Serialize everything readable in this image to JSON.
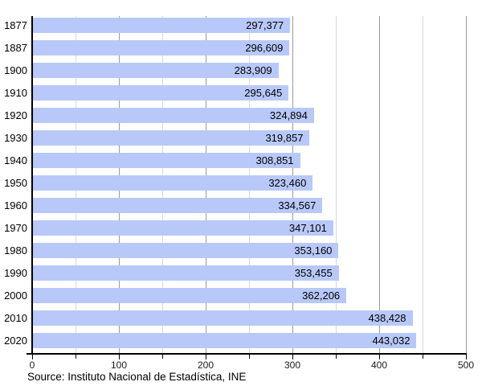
{
  "chart_data": {
    "type": "bar",
    "orientation": "horizontal",
    "title": "",
    "xlabel": "",
    "ylabel": "",
    "categories": [
      "1877",
      "1887",
      "1900",
      "1910",
      "1920",
      "1930",
      "1940",
      "1950",
      "1960",
      "1970",
      "1980",
      "1990",
      "2000",
      "2010",
      "2020"
    ],
    "values": [
      297377,
      296609,
      283909,
      295645,
      324894,
      319857,
      308851,
      323460,
      334567,
      347101,
      353160,
      353455,
      362206,
      438428,
      443032
    ],
    "value_labels": [
      "297,377",
      "296,609",
      "283,909",
      "295,645",
      "324,894",
      "319,857",
      "308,851",
      "323,460",
      "334,567",
      "347,101",
      "353,160",
      "353,455",
      "362,206",
      "438,428",
      "443,032"
    ],
    "xlim": [
      0,
      500
    ],
    "x_ticks": [
      0,
      100,
      200,
      300,
      400,
      500
    ],
    "x_tick_labels": [
      "0",
      "100",
      "200",
      "300",
      "400",
      "500"
    ],
    "x_minor_step": 50,
    "grid": "vertical",
    "legend": "none",
    "bar_color": "#b8c8f8",
    "minor_grid_color": "#d9d9d9",
    "major_grid_color": "#999999",
    "axis_color": "#000000"
  },
  "footer": {
    "source": "Source: Instituto Nacional de Estadística, INE"
  }
}
